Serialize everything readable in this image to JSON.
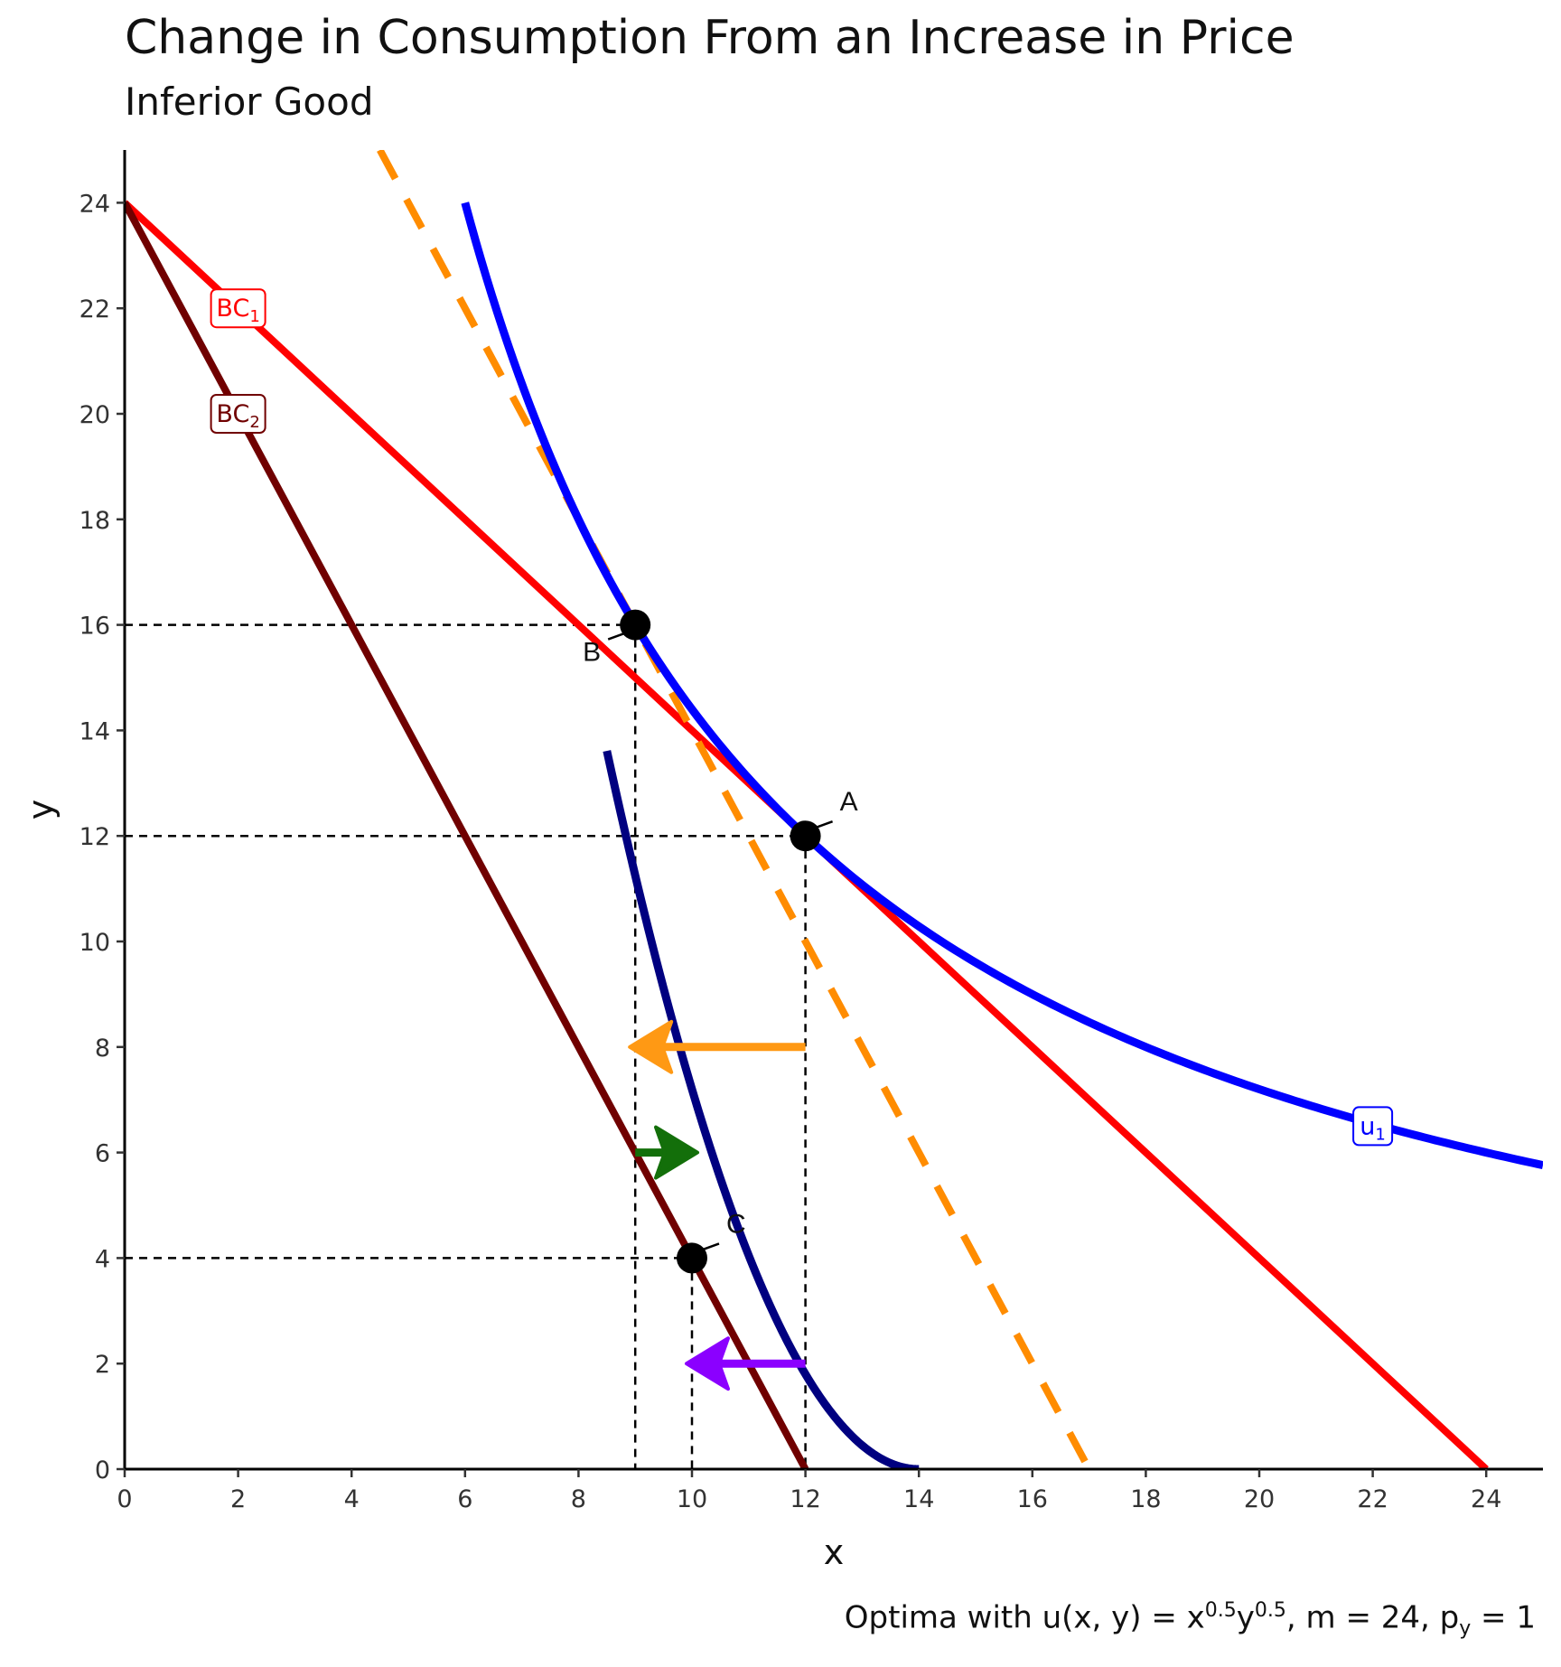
{
  "chart_data": {
    "type": "line",
    "title": "Change in Consumption From an Increase in Price",
    "subtitle": "Inferior Good",
    "xlabel": "x",
    "ylabel": "y",
    "xlim": [
      0,
      25
    ],
    "ylim": [
      0,
      25
    ],
    "x_ticks": [
      0,
      2,
      4,
      6,
      8,
      10,
      12,
      14,
      16,
      18,
      20,
      22,
      24
    ],
    "y_ticks": [
      0,
      2,
      4,
      6,
      8,
      10,
      12,
      14,
      16,
      18,
      20,
      22,
      24
    ],
    "grid": false,
    "caption": {
      "prefix": "Optima with u",
      "paren_open": "(",
      "args": "x, y",
      "paren_close": ")",
      "eq": " = x",
      "exp1": "0.5",
      "y": "y",
      "exp2": "0.5",
      "rest": ", m = 24, p",
      "sub": "y",
      "tail": " = 1"
    },
    "lines": [
      {
        "id": "bc1",
        "label_main": "BC",
        "label_sub": "1",
        "color": "#ff0000",
        "points": [
          [
            0,
            24
          ],
          [
            24,
            0
          ]
        ],
        "label_at": [
          2,
          22
        ]
      },
      {
        "id": "bc2",
        "label_main": "BC",
        "label_sub": "2",
        "color": "#700000",
        "points": [
          [
            0,
            24
          ],
          [
            12,
            0
          ]
        ],
        "label_at": [
          2,
          20
        ]
      },
      {
        "id": "compensated",
        "color": "#ff8c00",
        "dashed": true,
        "points": [
          [
            4.5,
            25
          ],
          [
            17,
            0
          ]
        ]
      }
    ],
    "curves": [
      {
        "id": "u1",
        "label_main": "u",
        "label_sub": "1",
        "color": "#0000ff",
        "k": 144,
        "x_from": 6,
        "x_to": 25,
        "label_at": [
          22,
          6.5
        ]
      },
      {
        "id": "u2",
        "color": "#000080",
        "type": "quasi",
        "a": 14,
        "b": 0.45,
        "x_from": 8.5,
        "x_to": 14,
        "label_at": null
      }
    ],
    "points": [
      {
        "label": "A",
        "x": 12,
        "y": 12
      },
      {
        "label": "B",
        "x": 9,
        "y": 16
      },
      {
        "label": "C",
        "x": 10,
        "y": 4
      }
    ],
    "arrows": [
      {
        "name": "substitution-effect-arrow",
        "color": "#ff9914",
        "from": [
          12,
          8
        ],
        "to": [
          9,
          8
        ]
      },
      {
        "name": "income-effect-arrow",
        "color": "#136f0a",
        "from": [
          9,
          6
        ],
        "to": [
          10,
          6
        ]
      },
      {
        "name": "total-effect-arrow",
        "color": "#8b00ff",
        "from": [
          12,
          2
        ],
        "to": [
          10,
          2
        ]
      }
    ]
  }
}
